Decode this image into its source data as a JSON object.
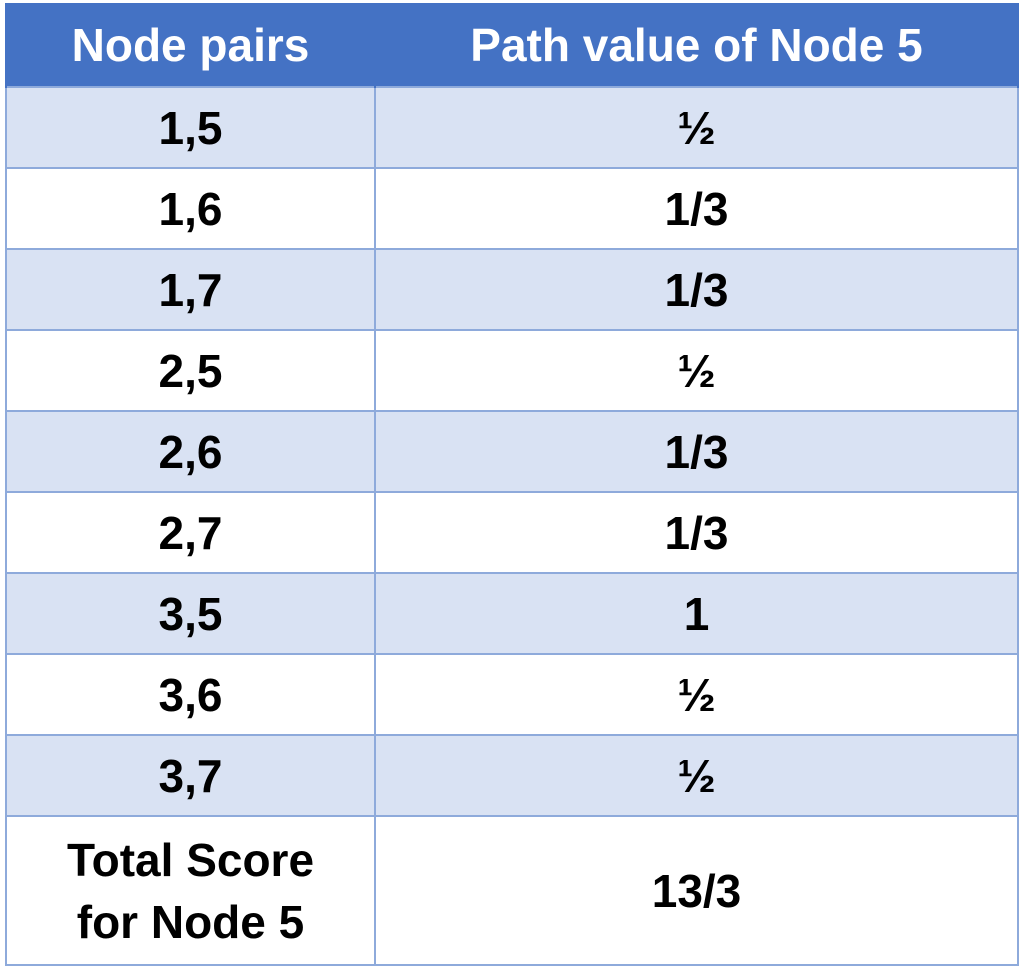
{
  "table": {
    "headers": [
      "Node pairs",
      "Path value of Node 5"
    ],
    "rows": [
      [
        "1,5",
        "½"
      ],
      [
        "1,6",
        "1/3"
      ],
      [
        "1,7",
        "1/3"
      ],
      [
        "2,5",
        "½"
      ],
      [
        "2,6",
        "1/3"
      ],
      [
        "2,7",
        "1/3"
      ],
      [
        "3,5",
        "1"
      ],
      [
        "3,6",
        "½"
      ],
      [
        "3,7",
        "½"
      ]
    ],
    "total": {
      "label_line1": "Total Score",
      "label_line2": "for Node 5",
      "value": "13/3"
    }
  },
  "colors": {
    "header_bg": "#4472c4",
    "band_bg": "#d9e2f3",
    "border": "#8eaadb",
    "header_text": "#ffffff"
  }
}
